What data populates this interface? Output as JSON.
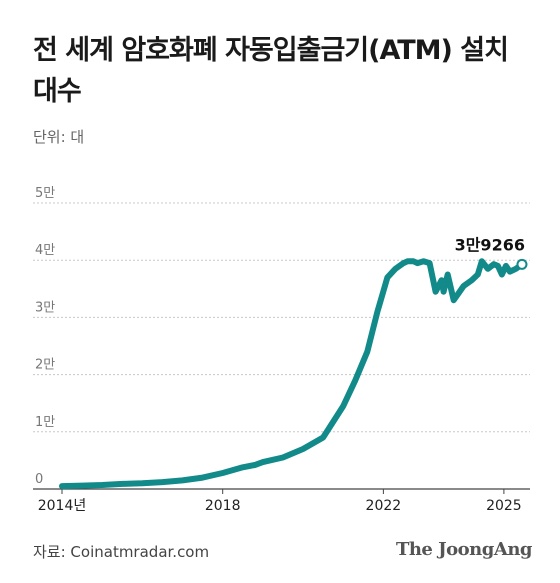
{
  "chart_data": {
    "type": "line",
    "title": "전 세계 암호화폐 자동입출금기(ATM) 설치 대수",
    "unit_label": "단위: 대",
    "y_ticks": [
      {
        "value": 0,
        "label": "0"
      },
      {
        "value": 10000,
        "label": "1만"
      },
      {
        "value": 20000,
        "label": "2만"
      },
      {
        "value": 30000,
        "label": "3만"
      },
      {
        "value": 40000,
        "label": "4만"
      },
      {
        "value": 50000,
        "label": "5만"
      }
    ],
    "ylim": [
      0,
      50000
    ],
    "xlim": [
      2014.0,
      2025.6
    ],
    "x_ticks": [
      {
        "value": 2014.0,
        "label": "2014년"
      },
      {
        "value": 2018.0,
        "label": "2018"
      },
      {
        "value": 2022.0,
        "label": "2022"
      },
      {
        "value": 2025.0,
        "label": "2025"
      }
    ],
    "grid": true,
    "color": "#138a8a",
    "series": [
      {
        "x": [
          2014.0,
          2014.5,
          2015.0,
          2015.5,
          2016.0,
          2016.5,
          2017.0,
          2017.5,
          2018.0,
          2018.5,
          2018.8,
          2019.0,
          2019.5,
          2020.0,
          2020.5,
          2021.0,
          2021.3,
          2021.6,
          2021.85,
          2022.1,
          2022.3,
          2022.5,
          2022.6,
          2022.75,
          2022.85,
          2023.0,
          2023.15,
          2023.3,
          2023.45,
          2023.5,
          2023.6,
          2023.75,
          2024.0,
          2024.2,
          2024.35,
          2024.45,
          2024.6,
          2024.75,
          2024.85,
          2024.95,
          2025.05,
          2025.15,
          2025.3,
          2025.45
        ],
        "values": [
          500,
          600,
          700,
          900,
          1000,
          1200,
          1500,
          2000,
          2800,
          3800,
          4200,
          4700,
          5500,
          7000,
          9000,
          14500,
          19000,
          24000,
          31000,
          37000,
          38500,
          39500,
          39800,
          39800,
          39500,
          39800,
          39500,
          34500,
          36500,
          34500,
          37500,
          33000,
          35500,
          36500,
          37500,
          39800,
          38500,
          39300,
          39000,
          37500,
          39000,
          38000,
          38500,
          39266
        ]
      }
    ],
    "annotations": [
      {
        "x": 2025.45,
        "y": 39266,
        "label": "3만9266"
      }
    ]
  },
  "footer": {
    "source": "자료: Coinatmradar.com",
    "brand": "The JoongAng"
  }
}
